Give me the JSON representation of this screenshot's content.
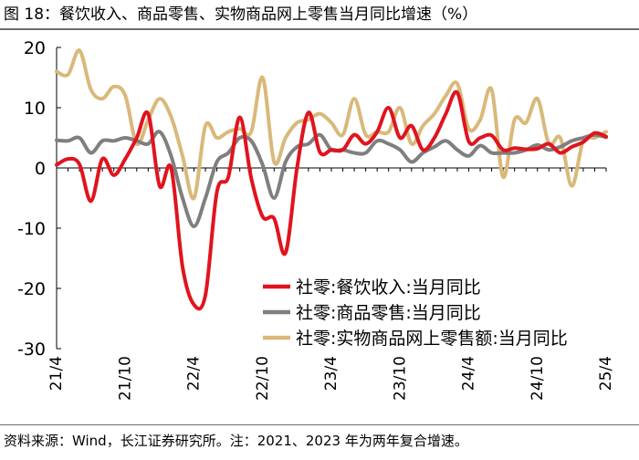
{
  "figure": {
    "title": "图 18：餐饮收入、商品零售、实物商品网上零售当月同比增速（%）",
    "source_note": "资料来源：Wind，长江证券研究所。注：2021、2023 年为两年复合增速。"
  },
  "colors": {
    "catering": "#e0141e",
    "goods": "#7f7f7f",
    "online": "#d9b97a"
  },
  "chart_data": {
    "type": "line",
    "title": "餐饮收入、商品零售、实物商品网上零售当月同比增速（%）",
    "xlabel": "",
    "ylabel": "",
    "ylim": [
      -30,
      20
    ],
    "yticks": [
      20,
      10,
      0,
      -10,
      -20,
      -30
    ],
    "x": [
      "21/4",
      "21/5",
      "21/6",
      "21/7",
      "21/8",
      "21/9",
      "21/10",
      "21/11",
      "21/12",
      "22/1",
      "22/2",
      "22/3",
      "22/4",
      "22/5",
      "22/6",
      "22/7",
      "22/8",
      "22/9",
      "22/10",
      "22/11",
      "22/12",
      "23/1",
      "23/2",
      "23/3",
      "23/4",
      "23/5",
      "23/6",
      "23/7",
      "23/8",
      "23/9",
      "23/10",
      "23/11",
      "23/12",
      "24/1",
      "24/2",
      "24/3",
      "24/4",
      "24/5",
      "24/6",
      "24/7",
      "24/8",
      "24/9",
      "24/10",
      "24/11",
      "24/12",
      "25/1",
      "25/2",
      "25/3",
      "25/4"
    ],
    "xtick_labels": [
      "21/4",
      "21/10",
      "22/4",
      "22/10",
      "23/4",
      "23/10",
      "24/4",
      "24/10",
      "25/4"
    ],
    "xtick_index": [
      0,
      6,
      12,
      18,
      24,
      30,
      36,
      42,
      48
    ],
    "legend_position": "bottom-right",
    "series": [
      {
        "name": "社零:餐饮收入:当月同比",
        "color_key": "catering",
        "values": [
          0.5,
          1.5,
          0.6,
          -5.5,
          1.5,
          -1.2,
          1.5,
          5.0,
          9.0,
          -3.0,
          0.0,
          -16.4,
          -22.7,
          -21.1,
          -4.0,
          -1.5,
          8.4,
          -1.7,
          -8.1,
          -8.4,
          -14.1,
          0.0,
          9.2,
          2.6,
          3.0,
          3.0,
          5.5,
          4.0,
          6.0,
          10.0,
          5.0,
          7.0,
          3.0,
          5.0,
          9.0,
          12.5,
          4.4,
          5.0,
          5.4,
          3.0,
          3.3,
          3.1,
          3.2,
          4.0,
          2.5,
          3.5,
          4.3,
          5.8,
          5.2
        ]
      },
      {
        "name": "社零:商品零售:当月同比",
        "color_key": "goods",
        "values": [
          4.6,
          4.5,
          5.0,
          2.5,
          4.5,
          4.5,
          5.0,
          4.5,
          4.0,
          6.0,
          2.0,
          -5.0,
          -9.7,
          -5.0,
          1.0,
          2.5,
          5.0,
          4.5,
          0.5,
          -5.0,
          1.0,
          3.5,
          4.0,
          5.5,
          3.0,
          3.0,
          2.5,
          2.5,
          4.5,
          4.0,
          3.0,
          1.0,
          2.5,
          3.5,
          4.5,
          3.0,
          2.0,
          3.7,
          2.5,
          2.5,
          2.5,
          3.0,
          3.8,
          3.0,
          3.5,
          4.5,
          5.0,
          5.5,
          5.1
        ]
      },
      {
        "name": "社零:实物商品网上零售额:当月同比",
        "color_key": "online",
        "values": [
          16.0,
          15.5,
          19.5,
          13.0,
          11.5,
          13.5,
          12.0,
          4.0,
          8.0,
          11.5,
          8.5,
          2.0,
          -5.0,
          7.0,
          5.0,
          6.0,
          6.5,
          6.0,
          15.0,
          1.0,
          5.0,
          7.5,
          8.0,
          9.0,
          7.5,
          5.5,
          11.5,
          5.5,
          6.0,
          6.0,
          10.0,
          4.0,
          7.0,
          9.0,
          12.0,
          14.0,
          6.5,
          8.0,
          13.0,
          -1.5,
          8.0,
          7.5,
          11.5,
          4.0,
          5.0,
          -3.0,
          4.5,
          5.0,
          6.0
        ]
      }
    ]
  }
}
